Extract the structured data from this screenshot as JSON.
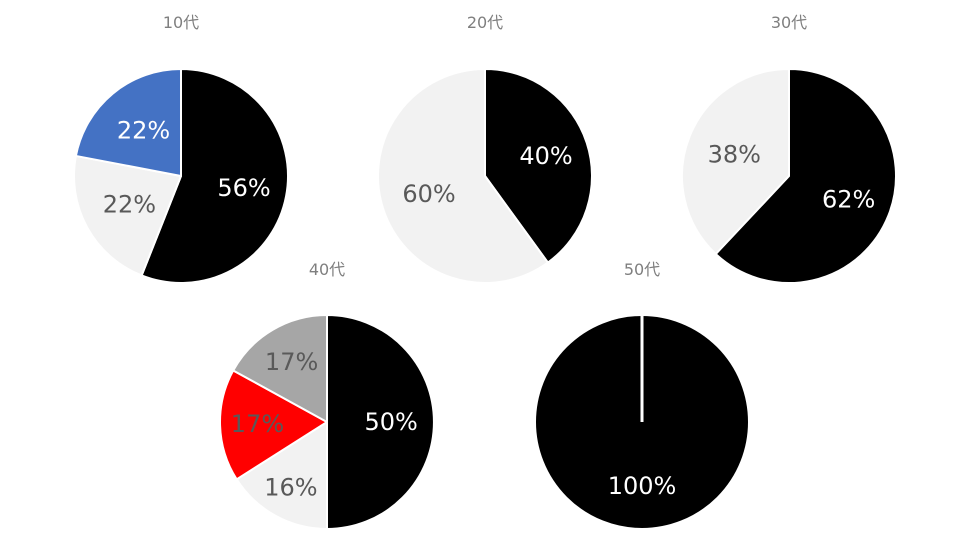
{
  "chart_data": [
    {
      "type": "pie",
      "title": "10代",
      "slices": [
        {
          "value": 56,
          "label": "56%",
          "color": "#000000",
          "label_color": "#ffffff"
        },
        {
          "value": 22,
          "label": "22%",
          "color": "#f2f2f2",
          "label_color": "#595959"
        },
        {
          "value": 22,
          "label": "22%",
          "color": "#4472c4",
          "label_color": "#ffffff"
        }
      ]
    },
    {
      "type": "pie",
      "title": "20代",
      "slices": [
        {
          "value": 40,
          "label": "40%",
          "color": "#000000",
          "label_color": "#ffffff"
        },
        {
          "value": 60,
          "label": "60%",
          "color": "#f2f2f2",
          "label_color": "#595959"
        }
      ]
    },
    {
      "type": "pie",
      "title": "30代",
      "slices": [
        {
          "value": 62,
          "label": "62%",
          "color": "#000000",
          "label_color": "#ffffff"
        },
        {
          "value": 38,
          "label": "38%",
          "color": "#f2f2f2",
          "label_color": "#595959"
        }
      ]
    },
    {
      "type": "pie",
      "title": "40代",
      "slices": [
        {
          "value": 50,
          "label": "50%",
          "color": "#000000",
          "label_color": "#ffffff"
        },
        {
          "value": 16,
          "label": "16%",
          "color": "#f2f2f2",
          "label_color": "#595959"
        },
        {
          "value": 17,
          "label": "17%",
          "color": "#ff0000",
          "label_color": "#595959"
        },
        {
          "value": 17,
          "label": "17%",
          "color": "#a6a6a6",
          "label_color": "#595959"
        }
      ]
    },
    {
      "type": "pie",
      "title": "50代",
      "slices": [
        {
          "value": 100,
          "label": "100%",
          "color": "#000000",
          "label_color": "#ffffff"
        }
      ]
    }
  ]
}
